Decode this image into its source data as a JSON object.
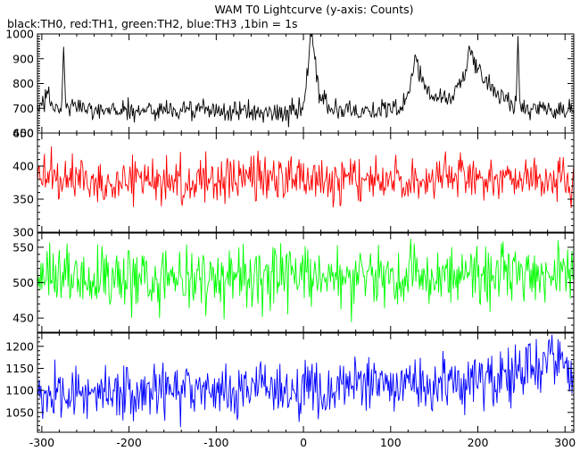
{
  "title": "WAM T0 Lightcurve (y-axis: Counts)",
  "subtitle": "black:TH0, red:TH1, green:TH2, blue:TH3 ,1bin = 1s",
  "chart_data": {
    "type": "line",
    "title": "WAM T0 Lightcurve (y-axis: Counts)",
    "subtitle": "black:TH0, red:TH1, green:TH2, blue:TH3 ,1bin = 1s",
    "xlim": [
      -305,
      310
    ],
    "x_ticks": [
      -300,
      -200,
      -100,
      0,
      100,
      200,
      300
    ],
    "x_step": 1,
    "grid": false,
    "panels": [
      {
        "name": "TH0",
        "color": "#000000",
        "ylim": [
          600,
          1000
        ],
        "y_ticks": [
          600,
          700,
          800,
          900,
          1000
        ],
        "baseline": [
          [
            -305,
            700
          ],
          [
            -293,
            750
          ],
          [
            -285,
            700
          ],
          [
            -260,
            705
          ],
          [
            -200,
            690
          ],
          [
            -150,
            695
          ],
          [
            -100,
            690
          ],
          [
            -50,
            685
          ],
          [
            -10,
            680
          ],
          [
            0,
            700
          ],
          [
            10,
            990
          ],
          [
            18,
            740
          ],
          [
            30,
            705
          ],
          [
            80,
            690
          ],
          [
            110,
            695
          ],
          [
            118,
            740
          ],
          [
            130,
            880
          ],
          [
            142,
            760
          ],
          [
            160,
            740
          ],
          [
            178,
            780
          ],
          [
            192,
            920
          ],
          [
            210,
            800
          ],
          [
            228,
            740
          ],
          [
            238,
            720
          ],
          [
            250,
            700
          ],
          [
            310,
            700
          ]
        ],
        "spikes": [
          [
            -275,
            960
          ],
          [
            8,
            1000
          ],
          [
            128,
            920
          ],
          [
            190,
            940
          ],
          [
            246,
            1000
          ]
        ],
        "noise": 22
      },
      {
        "name": "TH1",
        "color": "#ff0000",
        "ylim": [
          300,
          450
        ],
        "y_ticks": [
          300,
          350,
          400,
          450
        ],
        "baseline": [
          [
            -305,
            380
          ],
          [
            310,
            380
          ]
        ],
        "spikes": [],
        "noise": 18
      },
      {
        "name": "TH2",
        "color": "#00ff00",
        "ylim": [
          430,
          570
        ],
        "y_ticks": [
          450,
          500,
          550
        ],
        "baseline": [
          [
            -305,
            505
          ],
          [
            310,
            510
          ]
        ],
        "spikes": [],
        "noise": 22
      },
      {
        "name": "TH3",
        "color": "#0000ff",
        "ylim": [
          1005,
          1230
        ],
        "y_ticks": [
          1050,
          1100,
          1150,
          1200
        ],
        "baseline": [
          [
            -305,
            1090
          ],
          [
            0,
            1105
          ],
          [
            200,
            1115
          ],
          [
            250,
            1150
          ],
          [
            290,
            1165
          ],
          [
            310,
            1150
          ]
        ],
        "spikes": [],
        "noise": 32
      }
    ]
  }
}
